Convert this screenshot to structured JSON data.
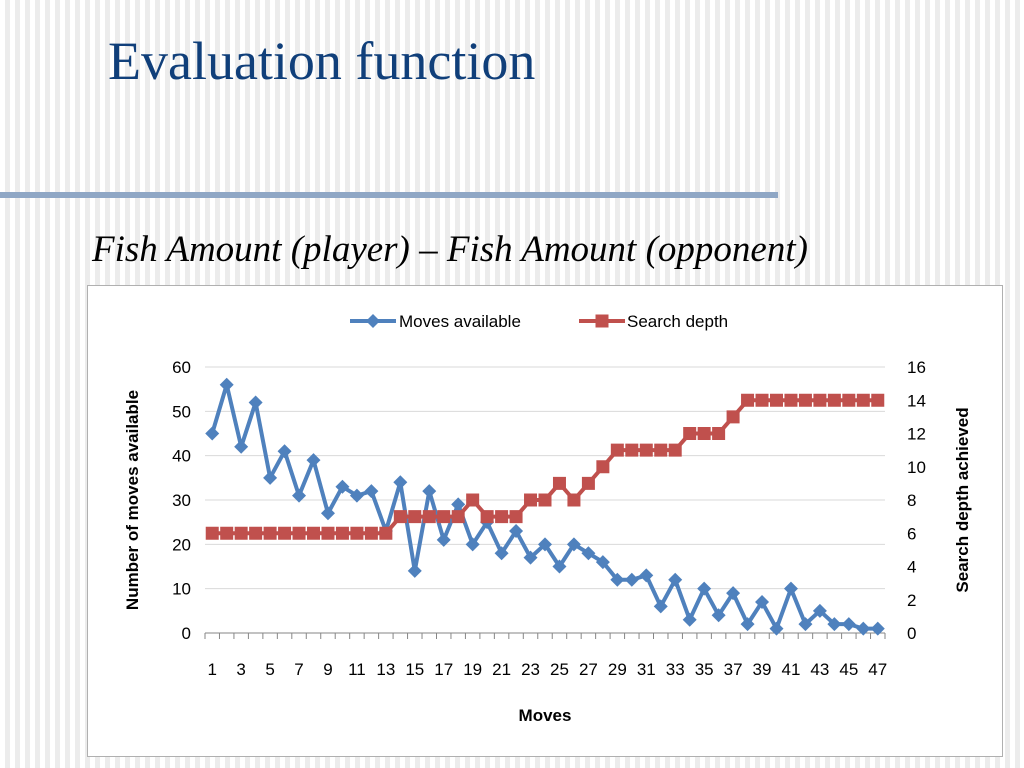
{
  "slide": {
    "title": "Evaluation function",
    "subtitle": "Fish Amount (player) – Fish Amount (opponent)"
  },
  "chart_data": {
    "type": "line",
    "title": "",
    "xlabel": "Moves",
    "ylabel_left": "Number of moves available",
    "ylabel_right": "Search depth achieved",
    "ylim_left": [
      0,
      60
    ],
    "yticks_left": [
      0,
      10,
      20,
      30,
      40,
      50,
      60
    ],
    "ylim_right": [
      0,
      16
    ],
    "yticks_right": [
      0,
      2,
      4,
      6,
      8,
      10,
      12,
      14,
      16
    ],
    "xticks": [
      "1",
      "3",
      "5",
      "7",
      "9",
      "11",
      "13",
      "15",
      "17",
      "19",
      "21",
      "23",
      "25",
      "27",
      "29",
      "31",
      "33",
      "35",
      "37",
      "39",
      "41",
      "43",
      "45",
      "47"
    ],
    "grid": true,
    "legend_position": "top",
    "x": [
      1,
      2,
      3,
      4,
      5,
      6,
      7,
      8,
      9,
      10,
      11,
      12,
      13,
      14,
      15,
      16,
      17,
      18,
      19,
      20,
      21,
      22,
      23,
      24,
      25,
      26,
      27,
      28,
      29,
      30,
      31,
      32,
      33,
      34,
      35,
      36,
      37,
      38,
      39,
      40,
      41,
      42,
      43,
      44,
      45,
      46,
      47
    ],
    "series": [
      {
        "name": "Moves available",
        "axis": "left",
        "color": "#4f81bd",
        "marker": "diamond",
        "values": [
          45,
          56,
          42,
          52,
          35,
          41,
          31,
          39,
          27,
          33,
          31,
          32,
          23,
          34,
          14,
          32,
          21,
          29,
          20,
          25,
          18,
          23,
          17,
          20,
          15,
          20,
          18,
          16,
          12,
          12,
          13,
          6,
          12,
          3,
          10,
          4,
          9,
          2,
          7,
          1,
          10,
          2,
          5,
          2,
          2,
          1,
          1
        ]
      },
      {
        "name": "Search depth",
        "axis": "right",
        "color": "#c0504d",
        "marker": "square",
        "values": [
          6,
          6,
          6,
          6,
          6,
          6,
          6,
          6,
          6,
          6,
          6,
          6,
          6,
          7,
          7,
          7,
          7,
          7,
          8,
          7,
          7,
          7,
          8,
          8,
          9,
          8,
          9,
          10,
          11,
          11,
          11,
          11,
          11,
          12,
          12,
          12,
          13,
          14,
          14,
          14,
          14,
          14,
          14,
          14,
          14,
          14,
          14
        ]
      }
    ]
  }
}
